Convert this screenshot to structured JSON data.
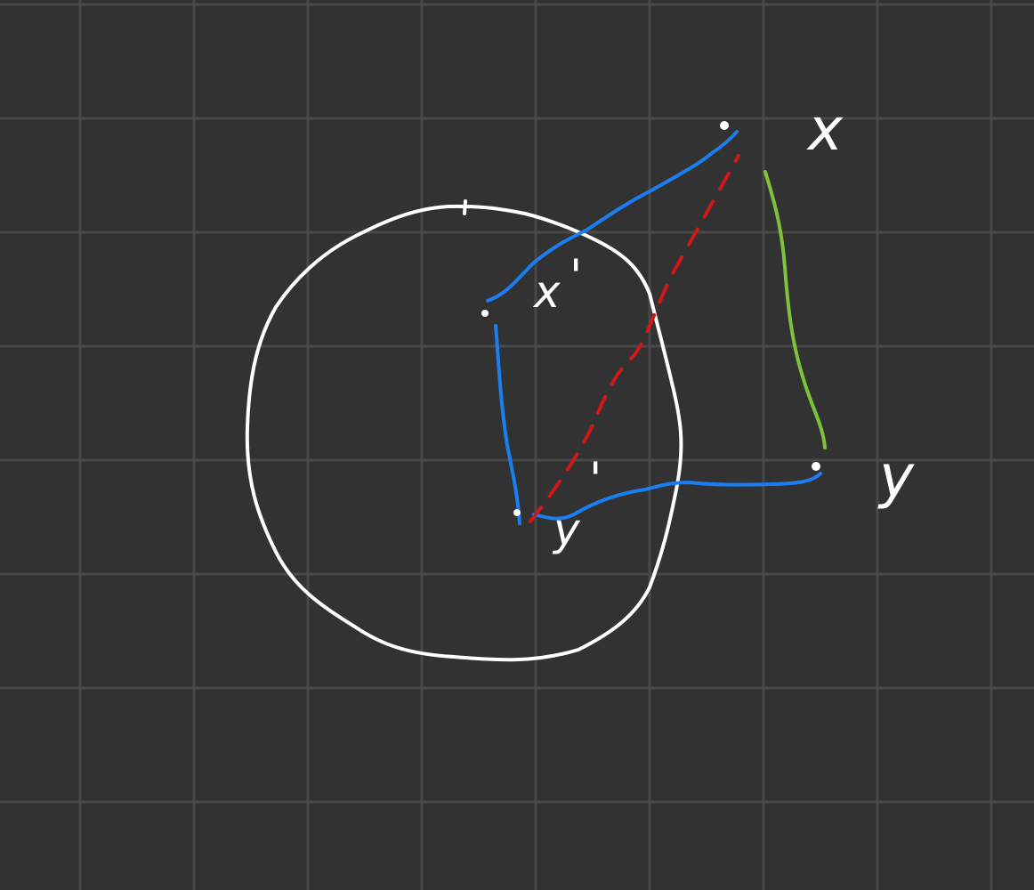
{
  "colors": {
    "background": "#323232",
    "grid": "#484848",
    "circle": "#ffffff",
    "blue_path": "#1a7df0",
    "red_dashed": "#d01818",
    "green_path": "#7cc23a",
    "labels": "#ffffff"
  },
  "labels": {
    "x": "x",
    "y": "y",
    "x_prime": "x",
    "y_prime": "y",
    "prime_mark": "'"
  }
}
